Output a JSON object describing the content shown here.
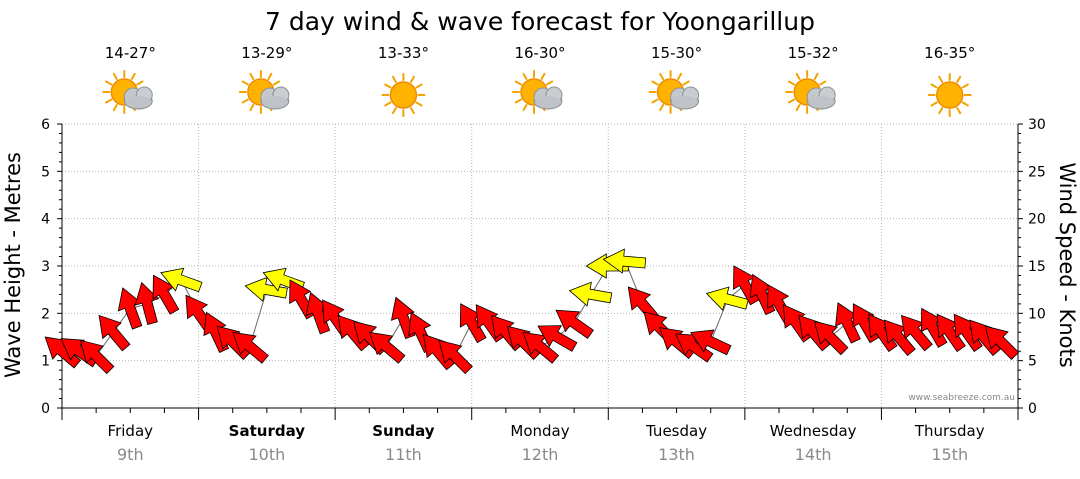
{
  "chart_data": {
    "type": "line",
    "title": "7 day wind & wave forecast for Yoongarillup",
    "ylabel_left": "Wave Height - Metres",
    "ylabel_right": "Wind Speed - Knots",
    "ylim_left": [
      0,
      6
    ],
    "ylim_right": [
      0,
      30
    ],
    "yticks_left": [
      "0",
      "1",
      "2",
      "3",
      "4",
      "5",
      "6"
    ],
    "yticks_right": [
      "0",
      "5",
      "10",
      "15",
      "20",
      "25",
      "30"
    ],
    "grid": true,
    "credit": "www.seabreeze.com.au",
    "days": [
      {
        "name": "Friday",
        "date": "9th",
        "temp": "14-27°",
        "icon": "partly-cloudy-icon",
        "bold": false
      },
      {
        "name": "Saturday",
        "date": "10th",
        "temp": "13-29°",
        "icon": "partly-cloudy-icon",
        "bold": true
      },
      {
        "name": "Sunday",
        "date": "11th",
        "temp": "13-33°",
        "icon": "sunny-icon",
        "bold": true
      },
      {
        "name": "Monday",
        "date": "12th",
        "temp": "16-30°",
        "icon": "partly-cloudy-icon",
        "bold": false
      },
      {
        "name": "Tuesday",
        "date": "13th",
        "temp": "15-30°",
        "icon": "partly-cloudy-icon",
        "bold": false
      },
      {
        "name": "Wednesday",
        "date": "14th",
        "temp": "15-32°",
        "icon": "partly-cloudy-icon",
        "bold": false
      },
      {
        "name": "Thursday",
        "date": "15th",
        "temp": "16-35°",
        "icon": "sunny-icon",
        "bold": false
      }
    ],
    "series": [
      {
        "name": "wind",
        "unit": "knots",
        "colors": {
          "strong": "#ff0000",
          "light": "#ffff00",
          "outline": "#000000"
        },
        "x_days": [
          0.0,
          0.125,
          0.25,
          0.375,
          0.5,
          0.625,
          0.75,
          0.875,
          1.0,
          1.125,
          1.25,
          1.375,
          1.5,
          1.625,
          1.75,
          1.875,
          2.0,
          2.125,
          2.25,
          2.375,
          2.5,
          2.625,
          2.75,
          2.875,
          3.0,
          3.125,
          3.25,
          3.375,
          3.5,
          3.625,
          3.75,
          3.875,
          4.0,
          4.125,
          4.25,
          4.375,
          4.5,
          4.625,
          4.75,
          4.875,
          5.0,
          5.125,
          5.25,
          5.375,
          5.5,
          5.625,
          5.75,
          5.875,
          6.0,
          6.125,
          6.25,
          6.375,
          6.5,
          6.625,
          6.75,
          6.875
        ],
        "speed_kn": [
          6,
          6,
          5.5,
          8,
          10.5,
          11,
          12,
          13.5,
          10,
          8,
          7,
          6.5,
          12.5,
          13.5,
          11.5,
          10,
          9.5,
          8,
          7.5,
          6.5,
          9.5,
          8,
          6,
          5.5,
          9,
          9,
          8,
          7,
          6.5,
          7.5,
          9,
          12,
          15,
          15.5,
          11,
          8.5,
          7,
          6.5,
          7,
          11.5,
          13,
          12,
          11,
          9,
          8,
          7.5,
          9,
          9,
          8,
          7.5,
          8,
          8.5,
          8,
          8,
          7.5,
          7
        ],
        "strength": [
          "strong",
          "strong",
          "strong",
          "strong",
          "strong",
          "strong",
          "strong",
          "light",
          "strong",
          "strong",
          "strong",
          "strong",
          "light",
          "light",
          "strong",
          "strong",
          "strong",
          "strong",
          "strong",
          "strong",
          "strong",
          "strong",
          "strong",
          "strong",
          "strong",
          "strong",
          "strong",
          "strong",
          "strong",
          "strong",
          "strong",
          "light",
          "light",
          "light",
          "strong",
          "strong",
          "strong",
          "strong",
          "strong",
          "light",
          "strong",
          "strong",
          "strong",
          "strong",
          "strong",
          "strong",
          "strong",
          "strong",
          "strong",
          "strong",
          "strong",
          "strong",
          "strong",
          "strong",
          "strong",
          "strong"
        ],
        "direction_deg": [
          220,
          215,
          225,
          230,
          250,
          255,
          240,
          200,
          235,
          245,
          225,
          220,
          190,
          200,
          240,
          250,
          235,
          230,
          225,
          220,
          250,
          245,
          230,
          225,
          240,
          235,
          230,
          225,
          220,
          210,
          215,
          190,
          180,
          185,
          230,
          225,
          220,
          215,
          205,
          195,
          240,
          245,
          240,
          235,
          230,
          225,
          245,
          240,
          235,
          230,
          230,
          240,
          235,
          235,
          230,
          225
        ]
      }
    ]
  }
}
